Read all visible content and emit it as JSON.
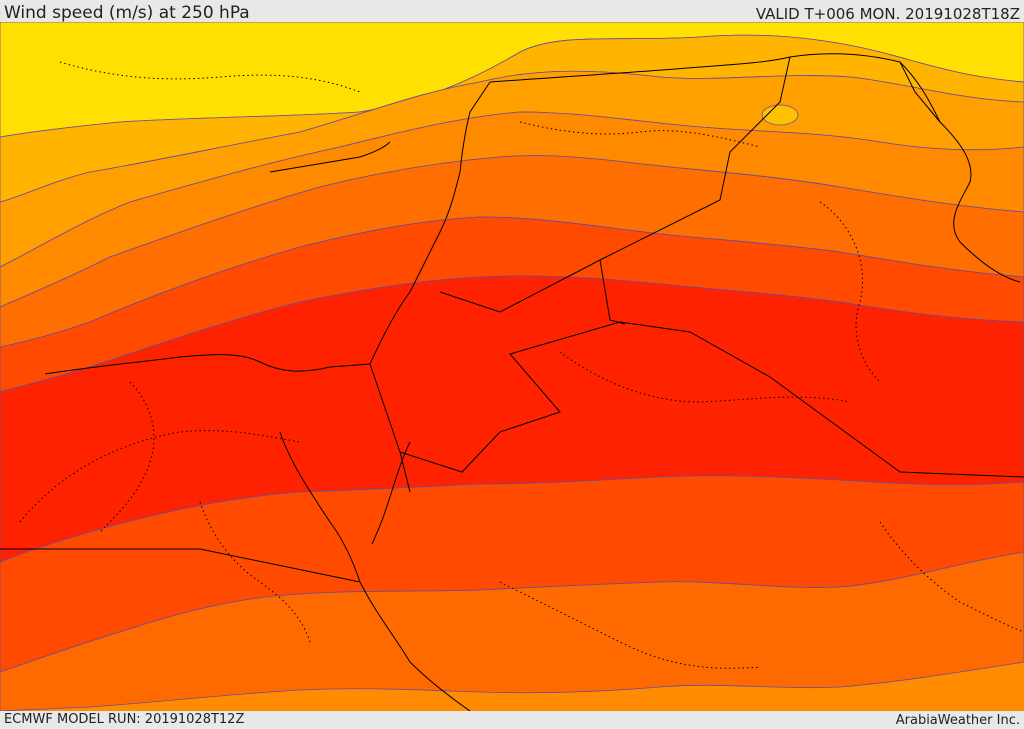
{
  "header": {
    "title": "Wind speed (m/s) at 250 hPa",
    "valid": "VALID T+006 MON. 20191028T18Z"
  },
  "footer": {
    "model_run": "ECMWF MODEL RUN: 20191028T12Z",
    "credit": "ArabiaWeather Inc."
  },
  "map": {
    "field": "wind-speed-250hPa",
    "band_colors": [
      "#ffe000",
      "#ffc200",
      "#ffa500",
      "#ff8c00",
      "#ff7300",
      "#ff5a00",
      "#ff3a00",
      "#ff2200"
    ],
    "contour_color": "#6a4aa0",
    "border_color": "#000000"
  }
}
